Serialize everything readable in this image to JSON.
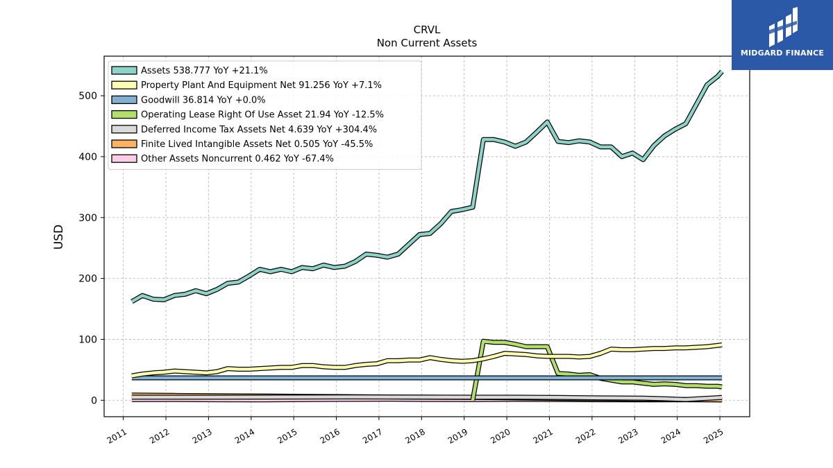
{
  "logo": {
    "text": "MIDGARD FINANCE"
  },
  "chart_data": {
    "type": "line",
    "title": "CRVL",
    "subtitle": "Non Current  Assets",
    "xlabel": "",
    "ylabel": "USD",
    "xlim": [
      2010.55,
      2025.7
    ],
    "ylim": [
      -27,
      565
    ],
    "xticks": [
      2011,
      2012,
      2013,
      2014,
      2015,
      2016,
      2017,
      2018,
      2019,
      2020,
      2021,
      2022,
      2023,
      2024,
      2025
    ],
    "yticks": [
      0,
      100,
      200,
      300,
      400,
      500
    ],
    "grid": true,
    "legend_position": "top-left",
    "series": [
      {
        "name": "Assets  538.777 YoY +21.1%",
        "color": "#8dd3c7",
        "x": [
          2011.2,
          2011.45,
          2011.7,
          2011.95,
          2012.2,
          2012.45,
          2012.7,
          2012.95,
          2013.2,
          2013.45,
          2013.7,
          2013.95,
          2014.2,
          2014.45,
          2014.7,
          2014.95,
          2015.2,
          2015.45,
          2015.7,
          2015.95,
          2016.2,
          2016.45,
          2016.7,
          2016.95,
          2017.2,
          2017.45,
          2017.7,
          2017.95,
          2018.2,
          2018.45,
          2018.7,
          2018.95,
          2019.2,
          2019.45,
          2019.7,
          2019.95,
          2020.2,
          2020.45,
          2020.7,
          2020.95,
          2021.2,
          2021.45,
          2021.7,
          2021.95,
          2022.2,
          2022.45,
          2022.7,
          2022.95,
          2023.2,
          2023.45,
          2023.7,
          2023.95,
          2024.2,
          2024.45,
          2024.7,
          2024.95,
          2025.05
        ],
        "y": [
          162,
          172,
          166,
          165,
          172,
          174,
          180,
          175,
          182,
          192,
          194,
          204,
          215,
          211,
          215,
          211,
          218,
          216,
          222,
          218,
          220,
          228,
          240,
          238,
          235,
          240,
          256,
          272,
          274,
          290,
          310,
          313,
          317,
          428,
          428,
          424,
          417,
          424,
          440,
          457,
          425,
          423,
          426,
          424,
          416,
          416,
          400,
          406,
          395,
          418,
          434,
          445,
          454,
          486,
          518,
          532,
          540
        ]
      },
      {
        "name": "Property Plant And Equipment Net  91.256 YoY +7.1%",
        "color": "#ffffb3",
        "x": [
          2011.2,
          2011.45,
          2011.7,
          2011.95,
          2012.2,
          2012.45,
          2012.7,
          2012.95,
          2013.2,
          2013.45,
          2013.7,
          2013.95,
          2014.2,
          2014.45,
          2014.7,
          2014.95,
          2015.2,
          2015.45,
          2015.7,
          2015.95,
          2016.2,
          2016.45,
          2016.7,
          2016.95,
          2017.2,
          2017.45,
          2017.7,
          2017.95,
          2018.2,
          2018.45,
          2018.7,
          2018.95,
          2019.2,
          2019.45,
          2019.7,
          2019.95,
          2020.2,
          2020.45,
          2020.7,
          2020.95,
          2021.2,
          2021.45,
          2021.7,
          2021.95,
          2022.2,
          2022.45,
          2022.7,
          2022.95,
          2023.2,
          2023.45,
          2023.7,
          2023.95,
          2024.2,
          2024.45,
          2024.7,
          2024.95,
          2025.05
        ],
        "y": [
          40,
          43,
          45,
          46,
          48,
          47,
          46,
          45,
          47,
          52,
          51,
          51,
          52,
          53,
          54,
          54,
          57,
          57,
          55,
          54,
          54,
          57,
          59,
          60,
          65,
          65,
          66,
          66,
          70,
          67,
          65,
          64,
          65,
          68,
          72,
          77,
          76,
          75,
          73,
          72,
          72,
          72,
          71,
          72,
          77,
          84,
          83,
          83,
          84,
          85,
          85,
          86,
          86,
          87,
          88,
          90,
          91
        ]
      },
      {
        "name": "Goodwill  36.814 YoY +0.0%",
        "color": "#80b1d3",
        "x": [
          2011.2,
          2025.05
        ],
        "y": [
          36.8,
          36.8
        ]
      },
      {
        "name": "Operating Lease Right Of Use Asset  21.94 YoY -12.5%",
        "color": "#b3de69",
        "x": [
          2019.2,
          2019.45,
          2019.7,
          2019.95,
          2020.2,
          2020.45,
          2020.7,
          2020.95,
          2021.2,
          2021.45,
          2021.7,
          2021.95,
          2022.2,
          2022.45,
          2022.7,
          2022.95,
          2023.2,
          2023.45,
          2023.7,
          2023.95,
          2024.2,
          2024.45,
          2024.7,
          2024.95,
          2025.05
        ],
        "y": [
          0,
          97,
          95,
          95,
          92,
          88,
          88,
          88,
          44,
          43,
          41,
          42,
          36,
          33,
          30,
          30,
          28,
          26,
          27,
          26,
          24,
          24,
          23,
          23,
          22
        ]
      },
      {
        "name": "Deferred Income Tax Assets Net  4.639 YoY +304.4%",
        "color": "#d9d9d9",
        "x": [
          2011.2,
          2013.2,
          2016.2,
          2019.2,
          2020.2,
          2021.2,
          2022.2,
          2023.2,
          2023.7,
          2024.2,
          2025.05
        ],
        "y": [
          5,
          5,
          5.5,
          5,
          5,
          4.5,
          3.8,
          3.5,
          2.5,
          1.2,
          4.6
        ]
      },
      {
        "name": "Finite Lived Intangible Assets Net  0.505 YoY -45.5%",
        "color": "#fdb462",
        "x": [
          2011.2,
          2012.2,
          2013.2,
          2014.2,
          2015.2,
          2016.2,
          2017.2,
          2018.2,
          2019.2,
          2020.2,
          2021.2,
          2022.2,
          2023.2,
          2024.2,
          2025.05
        ],
        "y": [
          8.5,
          8,
          7.5,
          7,
          6.5,
          6,
          5.5,
          5,
          4.5,
          3.8,
          3,
          2.5,
          1.8,
          1.2,
          0.5
        ]
      },
      {
        "name": "Other Assets Noncurrent  0.462 YoY -67.4%",
        "color": "#fccde5",
        "x": [
          2011.2,
          2012.2,
          2013.2,
          2014.2,
          2015.2,
          2016.2,
          2017.2,
          2018.2,
          2019.2,
          2020.2,
          2021.2,
          2022.2,
          2023.2,
          2024.2,
          2025.05
        ],
        "y": [
          1,
          1.2,
          0.8,
          0.5,
          1,
          1.5,
          1.8,
          1.2,
          1,
          1.5,
          1.2,
          0.8,
          0.5,
          0.8,
          0.5
        ]
      }
    ]
  }
}
